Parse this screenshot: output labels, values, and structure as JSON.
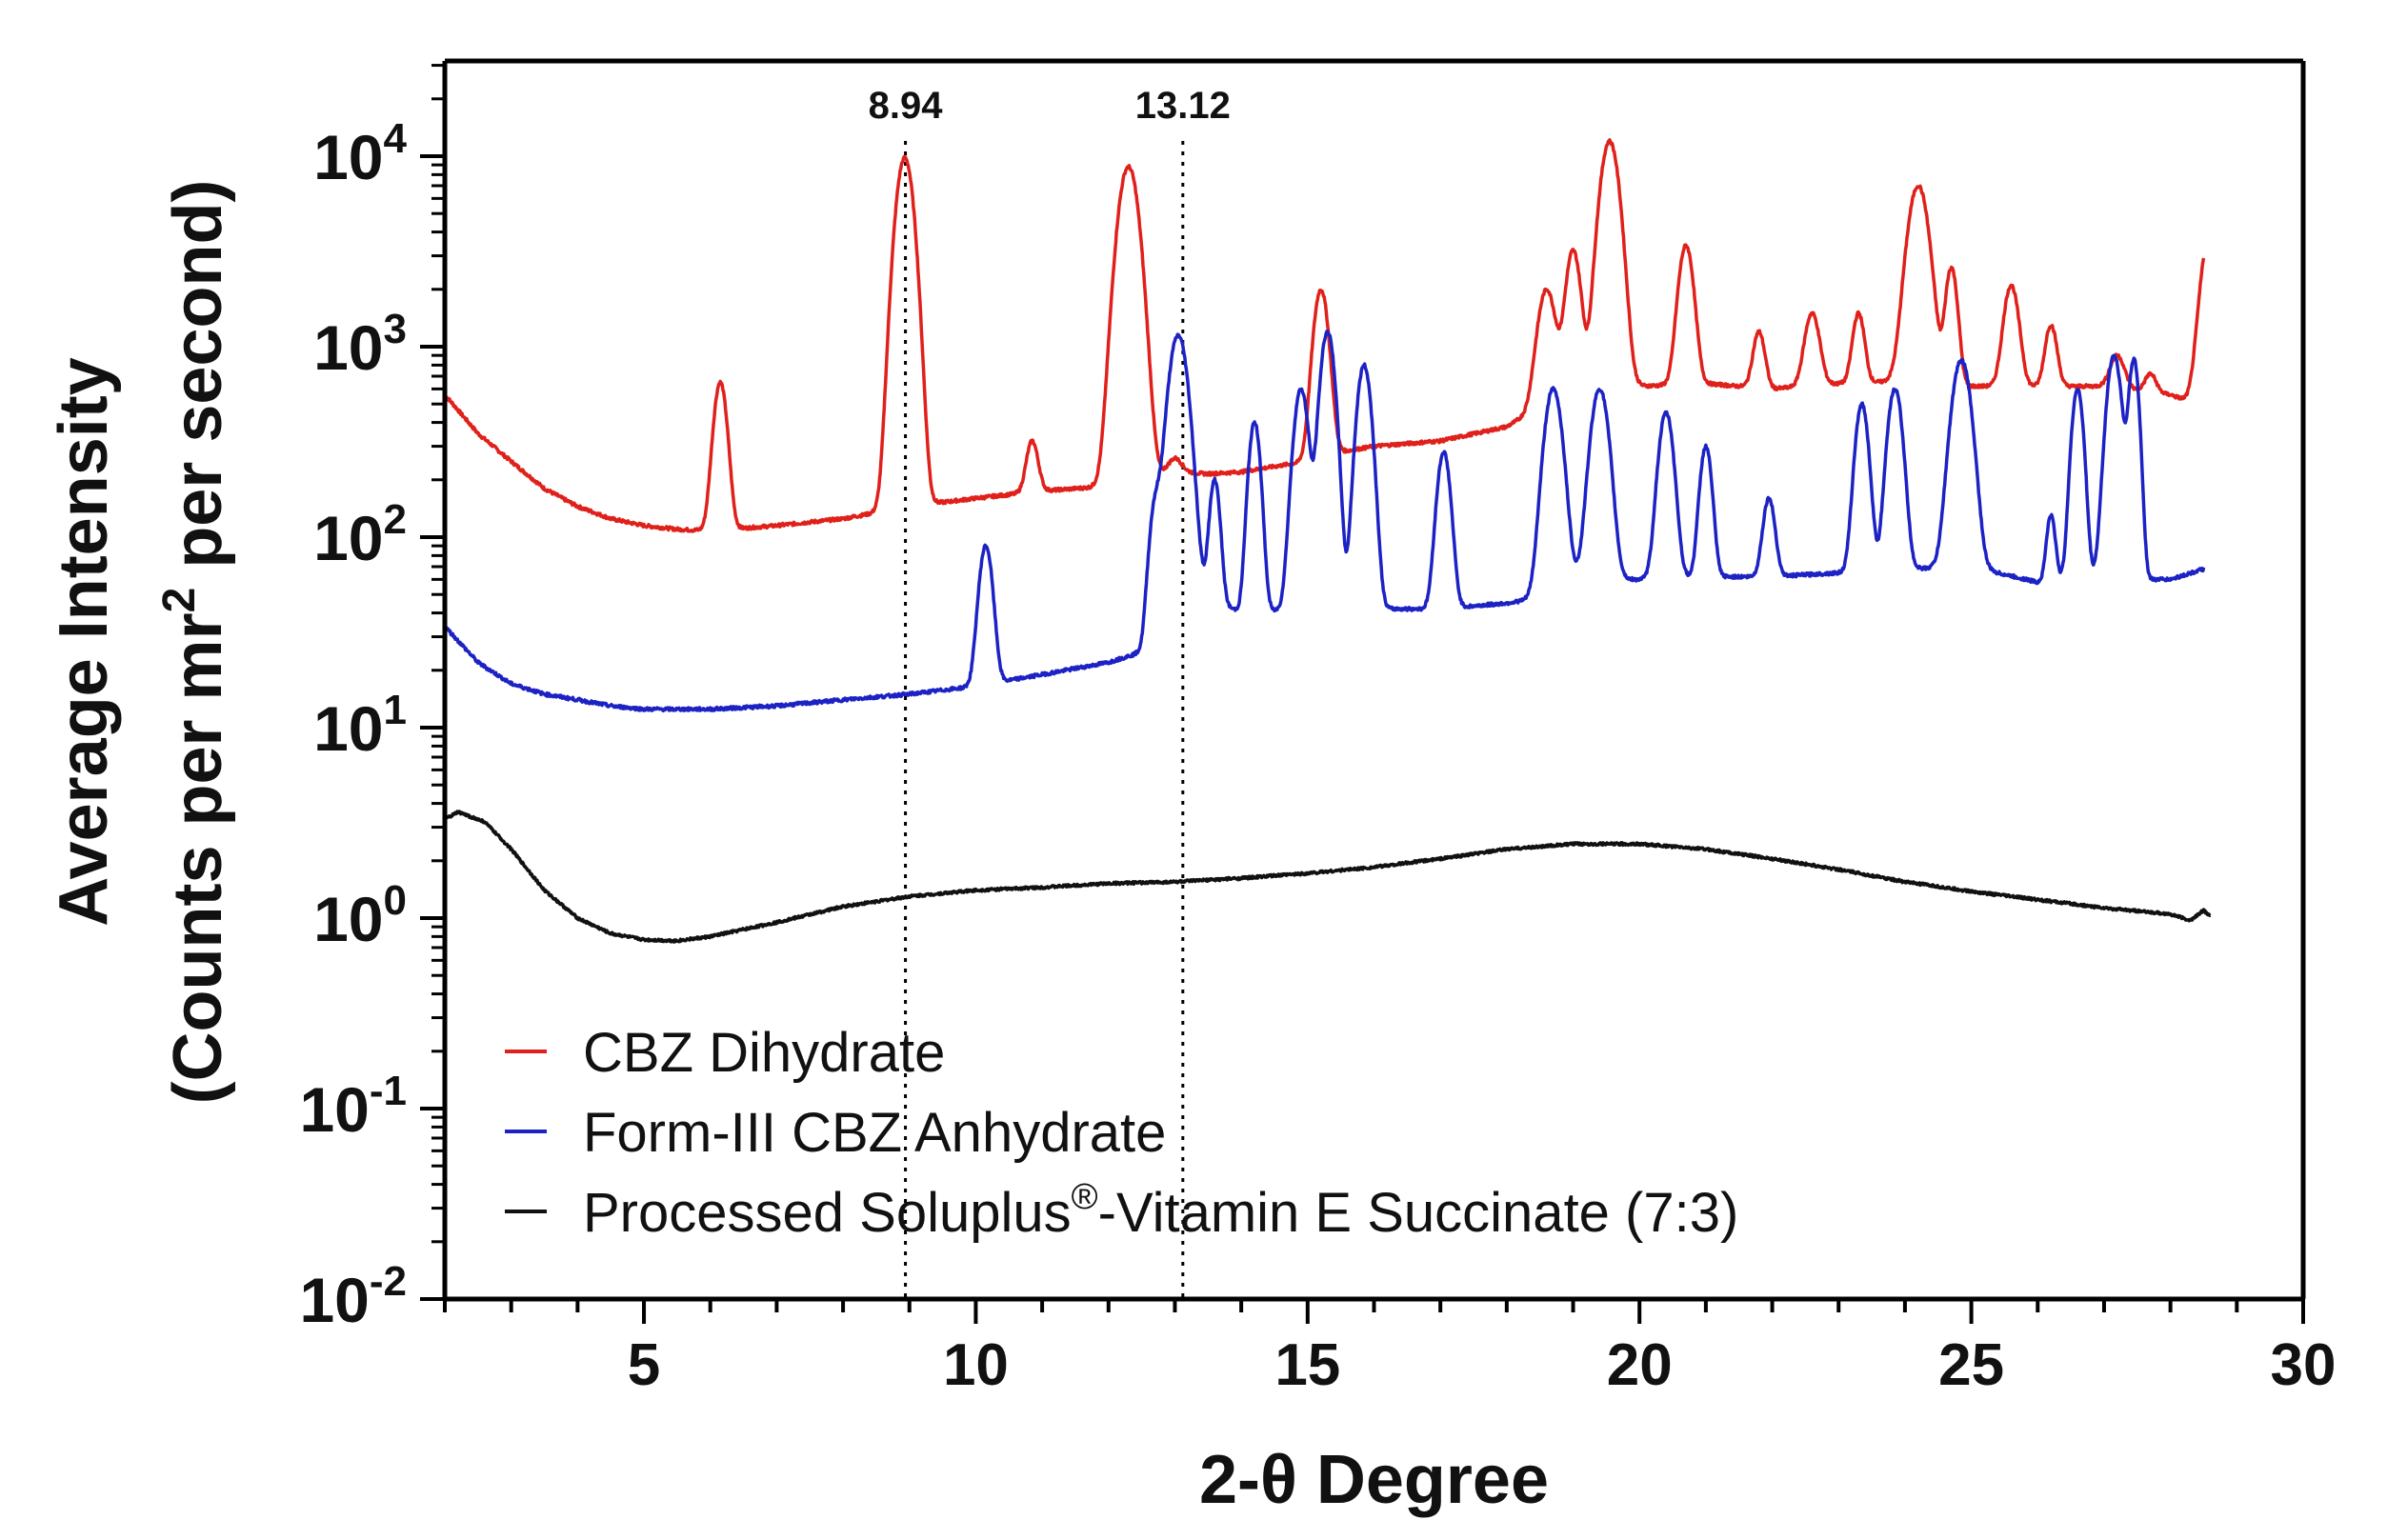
{
  "chart_data": {
    "type": "line",
    "title": "",
    "xlabel": "2-θ Degree",
    "ylabel_line1": "Average Intensity",
    "ylabel_line2_pre": "(Counts per mr",
    "ylabel_line2_sup": "2",
    "ylabel_line2_post": " per second)",
    "xlim": [
      2,
      30
    ],
    "ylim_log10": [
      -2,
      4.5
    ],
    "y_scale": "log",
    "x_ticks": [
      5,
      10,
      15,
      20,
      25,
      30
    ],
    "x_minor_step": 1,
    "y_ticks": [
      {
        "exp": 4,
        "base": "10",
        "sup": "4"
      },
      {
        "exp": 3,
        "base": "10",
        "sup": "3"
      },
      {
        "exp": 2,
        "base": "10",
        "sup": "2"
      },
      {
        "exp": 1,
        "base": "10",
        "sup": "1"
      },
      {
        "exp": 0,
        "base": "10",
        "sup": "0"
      },
      {
        "exp": -1,
        "base": "10",
        "sup": "-1"
      },
      {
        "exp": -2,
        "base": "10",
        "sup": "-2"
      }
    ],
    "annotations": [
      {
        "x": 8.94,
        "label": "8.94"
      },
      {
        "x": 13.12,
        "label": "13.12"
      }
    ],
    "legend_position": "bottom-left",
    "series": [
      {
        "name": "CBZ Dihydrate",
        "color": "#e0201b",
        "baseline": [
          [
            2,
            560
          ],
          [
            2.5,
            350
          ],
          [
            3,
            250
          ],
          [
            3.5,
            180
          ],
          [
            4,
            145
          ],
          [
            4.5,
            125
          ],
          [
            5,
            115
          ],
          [
            5.5,
            110
          ],
          [
            6,
            108
          ],
          [
            7,
            115
          ],
          [
            8,
            125
          ],
          [
            9,
            145
          ],
          [
            10,
            160
          ],
          [
            11,
            175
          ],
          [
            12,
            185
          ],
          [
            13,
            220
          ],
          [
            13.5,
            215
          ],
          [
            14,
            220
          ],
          [
            14.5,
            235
          ],
          [
            15,
            250
          ],
          [
            15.5,
            280
          ],
          [
            16,
            300
          ],
          [
            17,
            320
          ],
          [
            18,
            380
          ],
          [
            18.4,
            460
          ],
          [
            19,
            600
          ],
          [
            20,
            620
          ],
          [
            21,
            640
          ],
          [
            22,
            600
          ],
          [
            23,
            640
          ],
          [
            24,
            660
          ],
          [
            25,
            620
          ],
          [
            26,
            620
          ],
          [
            27,
            620
          ],
          [
            28,
            560
          ],
          [
            28.5,
            480
          ]
        ],
        "peaks": [
          [
            6.15,
            650,
            0.09
          ],
          [
            8.93,
            9800,
            0.12
          ],
          [
            10.85,
            320,
            0.08
          ],
          [
            12.3,
            8800,
            0.14
          ],
          [
            13.0,
            260,
            0.1
          ],
          [
            15.2,
            2000,
            0.1
          ],
          [
            18.6,
            2000,
            0.12
          ],
          [
            19.0,
            3200,
            0.1
          ],
          [
            19.55,
            12000,
            0.13
          ],
          [
            20.7,
            3400,
            0.1
          ],
          [
            21.8,
            1200,
            0.08
          ],
          [
            22.6,
            1500,
            0.1
          ],
          [
            23.3,
            1500,
            0.08
          ],
          [
            24.2,
            7000,
            0.14
          ],
          [
            24.7,
            2600,
            0.08
          ],
          [
            25.6,
            2100,
            0.1
          ],
          [
            26.2,
            1300,
            0.08
          ],
          [
            27.2,
            900,
            0.1
          ],
          [
            27.7,
            720,
            0.08
          ],
          [
            28.6,
            4000,
            0.12
          ]
        ]
      },
      {
        "name": "Form-III CBZ Anhydrate",
        "color": "#1c22c4",
        "baseline": [
          [
            2,
            34
          ],
          [
            2.5,
            22
          ],
          [
            3,
            17
          ],
          [
            3.5,
            15
          ],
          [
            4,
            14
          ],
          [
            4.5,
            13
          ],
          [
            5,
            12.5
          ],
          [
            6,
            12.5
          ],
          [
            7,
            13
          ],
          [
            8,
            14
          ],
          [
            9,
            15
          ],
          [
            10,
            16.5
          ],
          [
            11,
            19
          ],
          [
            12,
            22
          ],
          [
            12.5,
            25
          ],
          [
            13,
            60
          ],
          [
            13.5,
            48
          ],
          [
            14,
            40
          ],
          [
            15,
            42
          ],
          [
            16,
            42
          ],
          [
            17,
            42
          ],
          [
            18,
            45
          ],
          [
            18.5,
            48
          ],
          [
            19,
            60
          ],
          [
            20,
            60
          ],
          [
            21,
            62
          ],
          [
            22,
            62
          ],
          [
            23,
            65
          ],
          [
            24,
            68
          ],
          [
            25,
            70
          ],
          [
            26,
            58
          ],
          [
            27,
            60
          ],
          [
            28,
            60
          ],
          [
            28.5,
            68
          ]
        ],
        "peaks": [
          [
            10.15,
            90,
            0.09
          ],
          [
            12.7,
            140,
            0.08
          ],
          [
            13.05,
            1150,
            0.13
          ],
          [
            13.6,
            200,
            0.07
          ],
          [
            14.2,
            400,
            0.08
          ],
          [
            14.9,
            600,
            0.1
          ],
          [
            15.3,
            1200,
            0.1
          ],
          [
            15.85,
            800,
            0.1
          ],
          [
            17.05,
            280,
            0.09
          ],
          [
            18.7,
            600,
            0.12
          ],
          [
            19.4,
            600,
            0.12
          ],
          [
            20.4,
            450,
            0.1
          ],
          [
            21.0,
            300,
            0.08
          ],
          [
            21.95,
            160,
            0.08
          ],
          [
            23.35,
            500,
            0.09
          ],
          [
            23.85,
            600,
            0.1
          ],
          [
            24.85,
            850,
            0.13
          ],
          [
            26.2,
            130,
            0.06
          ],
          [
            26.6,
            600,
            0.08
          ],
          [
            27.15,
            900,
            0.1
          ],
          [
            27.45,
            850,
            0.07
          ]
        ]
      },
      {
        "name": "Processed Soluplus®-Vitamin E Succinate (7:3)",
        "legend_pre": "Processed Soluplus",
        "legend_sup": "®",
        "legend_post": "-Vitamin E Succinate (7:3)",
        "color": "#111111",
        "baseline": [
          [
            2,
            3.3
          ],
          [
            2.2,
            3.6
          ],
          [
            2.6,
            3.2
          ],
          [
            3,
            2.3
          ],
          [
            3.5,
            1.4
          ],
          [
            4,
            1.0
          ],
          [
            4.5,
            0.83
          ],
          [
            5,
            0.77
          ],
          [
            5.5,
            0.76
          ],
          [
            6,
            0.8
          ],
          [
            7,
            0.95
          ],
          [
            8,
            1.15
          ],
          [
            9,
            1.3
          ],
          [
            10,
            1.4
          ],
          [
            11,
            1.45
          ],
          [
            12,
            1.52
          ],
          [
            13,
            1.55
          ],
          [
            14,
            1.62
          ],
          [
            15,
            1.72
          ],
          [
            16,
            1.85
          ],
          [
            17,
            2.05
          ],
          [
            18,
            2.3
          ],
          [
            19,
            2.45
          ],
          [
            20,
            2.45
          ],
          [
            21,
            2.3
          ],
          [
            22,
            2.05
          ],
          [
            23,
            1.8
          ],
          [
            24,
            1.55
          ],
          [
            25,
            1.38
          ],
          [
            26,
            1.25
          ],
          [
            27,
            1.13
          ],
          [
            28,
            1.05
          ],
          [
            28.3,
            0.97
          ],
          [
            28.5,
            1.1
          ],
          [
            28.6,
            1.02
          ]
        ],
        "peaks": []
      }
    ]
  }
}
